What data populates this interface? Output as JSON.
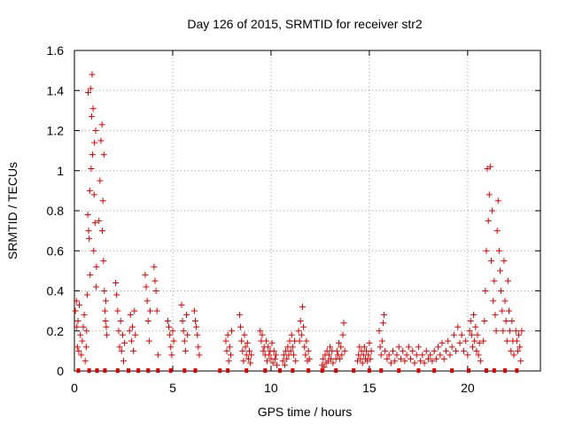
{
  "chart_data": {
    "type": "scatter",
    "title": "Day 126 of 2015, SRMTID for receiver str2",
    "xlabel": "GPS time / hours",
    "ylabel": "SRMTID / TECUs",
    "xlim": [
      0,
      23.7
    ],
    "ylim": [
      0,
      1.6
    ],
    "xticks": [
      0,
      5,
      10,
      15,
      20
    ],
    "xtick_labels": [
      "0",
      "5",
      "10",
      "15",
      "20"
    ],
    "yticks": [
      0,
      0.2,
      0.4,
      0.6,
      0.8,
      1.0,
      1.2,
      1.4,
      1.6
    ],
    "ytick_labels": [
      "0",
      "0.2",
      "0.4",
      "0.6",
      "0.8",
      "1",
      "1.2",
      "1.4",
      "1.6"
    ],
    "grid": true,
    "marker": "plus",
    "color": "#e00000",
    "series": [
      {
        "name": "SRMTID",
        "points": [
          [
            0.05,
            0.3
          ],
          [
            0.1,
            0.35
          ],
          [
            0.12,
            0.22
          ],
          [
            0.15,
            0.12
          ],
          [
            0.18,
            0.25
          ],
          [
            0.22,
            0.1
          ],
          [
            0.25,
            0.33
          ],
          [
            0.3,
            0.18
          ],
          [
            0.35,
            0.08
          ],
          [
            0.4,
            0.15
          ],
          [
            0.45,
            0.22
          ],
          [
            0.5,
            0.28
          ],
          [
            0.55,
            0.05
          ],
          [
            0.6,
            0.12
          ],
          [
            0.62,
            0.2
          ],
          [
            0.65,
            0.38
          ],
          [
            0.68,
            0.78
          ],
          [
            0.7,
            1.39
          ],
          [
            0.72,
            0.7
          ],
          [
            0.75,
            0.66
          ],
          [
            0.78,
            0.9
          ],
          [
            0.8,
            0.48
          ],
          [
            0.82,
            1.41
          ],
          [
            0.85,
            1.01
          ],
          [
            0.88,
            1.27
          ],
          [
            0.9,
            1.48
          ],
          [
            0.92,
            1.08
          ],
          [
            0.95,
            1.31
          ],
          [
            0.98,
            0.6
          ],
          [
            1.0,
            0.88
          ],
          [
            1.02,
            1.14
          ],
          [
            1.05,
            0.74
          ],
          [
            1.08,
            1.2
          ],
          [
            1.1,
            0.42
          ],
          [
            1.12,
            0.52
          ],
          [
            1.25,
            0.75
          ],
          [
            1.3,
            0.95
          ],
          [
            1.35,
            1.15
          ],
          [
            1.4,
            1.23
          ],
          [
            1.42,
            0.7
          ],
          [
            1.45,
            0.85
          ],
          [
            1.48,
            0.55
          ],
          [
            1.5,
            1.08
          ],
          [
            1.52,
            0.4
          ],
          [
            1.55,
            0.3
          ],
          [
            1.58,
            0.25
          ],
          [
            1.6,
            0.35
          ],
          [
            1.62,
            0.22
          ],
          [
            1.65,
            0.18
          ],
          [
            2.1,
            0.44
          ],
          [
            2.15,
            0.38
          ],
          [
            2.2,
            0.3
          ],
          [
            2.25,
            0.2
          ],
          [
            2.3,
            0.12
          ],
          [
            2.35,
            0.25
          ],
          [
            2.4,
            0.1
          ],
          [
            2.45,
            0.18
          ],
          [
            2.5,
            0.05
          ],
          [
            2.55,
            0.14
          ],
          [
            2.8,
            0.2
          ],
          [
            2.85,
            0.28
          ],
          [
            2.9,
            0.15
          ],
          [
            2.95,
            0.22
          ],
          [
            3.0,
            0.1
          ],
          [
            3.05,
            0.3
          ],
          [
            3.1,
            0.18
          ],
          [
            3.6,
            0.48
          ],
          [
            3.65,
            0.42
          ],
          [
            3.7,
            0.35
          ],
          [
            3.75,
            0.25
          ],
          [
            3.8,
            0.15
          ],
          [
            3.85,
            0.3
          ],
          [
            4.05,
            0.52
          ],
          [
            4.1,
            0.45
          ],
          [
            4.15,
            0.4
          ],
          [
            4.2,
            0.3
          ],
          [
            4.25,
            0.08
          ],
          [
            4.75,
            0.25
          ],
          [
            4.8,
            0.22
          ],
          [
            4.85,
            0.18
          ],
          [
            4.9,
            0.12
          ],
          [
            4.95,
            0.08
          ],
          [
            5.0,
            0.2
          ],
          [
            5.05,
            0.15
          ],
          [
            5.45,
            0.33
          ],
          [
            5.5,
            0.25
          ],
          [
            5.55,
            0.2
          ],
          [
            5.6,
            0.15
          ],
          [
            5.65,
            0.1
          ],
          [
            5.7,
            0.28
          ],
          [
            5.75,
            0.18
          ],
          [
            6.1,
            0.3
          ],
          [
            6.15,
            0.25
          ],
          [
            6.2,
            0.22
          ],
          [
            6.25,
            0.18
          ],
          [
            6.3,
            0.12
          ],
          [
            6.35,
            0.08
          ],
          [
            7.7,
            0.15
          ],
          [
            7.75,
            0.1
          ],
          [
            7.8,
            0.18
          ],
          [
            7.85,
            0.05
          ],
          [
            7.9,
            0.12
          ],
          [
            7.95,
            0.08
          ],
          [
            8.0,
            0.2
          ],
          [
            8.4,
            0.28
          ],
          [
            8.45,
            0.22
          ],
          [
            8.5,
            0.15
          ],
          [
            8.55,
            0.1
          ],
          [
            8.6,
            0.05
          ],
          [
            8.65,
            0.18
          ],
          [
            8.7,
            0.12
          ],
          [
            8.75,
            0.08
          ],
          [
            8.8,
            0.14
          ],
          [
            8.85,
            0.06
          ],
          [
            8.9,
            0.1
          ],
          [
            8.95,
            0.04
          ],
          [
            9.0,
            0.08
          ],
          [
            9.45,
            0.2
          ],
          [
            9.5,
            0.15
          ],
          [
            9.55,
            0.18
          ],
          [
            9.6,
            0.1
          ],
          [
            9.65,
            0.12
          ],
          [
            9.7,
            0.08
          ],
          [
            9.75,
            0.15
          ],
          [
            9.8,
            0.05
          ],
          [
            9.85,
            0.12
          ],
          [
            9.9,
            0.08
          ],
          [
            9.95,
            0.1
          ],
          [
            10.0,
            0.06
          ],
          [
            10.05,
            0.14
          ],
          [
            10.1,
            0.04
          ],
          [
            10.15,
            0.1
          ],
          [
            10.2,
            0.06
          ],
          [
            10.25,
            0.08
          ],
          [
            10.3,
            0.03
          ],
          [
            10.6,
            0.05
          ],
          [
            10.65,
            0.08
          ],
          [
            10.7,
            0.03
          ],
          [
            10.75,
            0.1
          ],
          [
            10.8,
            0.06
          ],
          [
            10.85,
            0.12
          ],
          [
            10.9,
            0.08
          ],
          [
            10.95,
            0.15
          ],
          [
            11.0,
            0.1
          ],
          [
            11.05,
            0.18
          ],
          [
            11.1,
            0.12
          ],
          [
            11.15,
            0.08
          ],
          [
            11.2,
            0.15
          ],
          [
            11.25,
            0.05
          ],
          [
            11.4,
            0.2
          ],
          [
            11.45,
            0.15
          ],
          [
            11.5,
            0.25
          ],
          [
            11.55,
            0.18
          ],
          [
            11.6,
            0.32
          ],
          [
            11.65,
            0.22
          ],
          [
            11.7,
            0.12
          ],
          [
            11.75,
            0.08
          ],
          [
            11.8,
            0.15
          ],
          [
            11.85,
            0.05
          ],
          [
            11.9,
            0.1
          ],
          [
            11.95,
            0.06
          ],
          [
            12.6,
            0.03
          ],
          [
            12.65,
            0.06
          ],
          [
            12.7,
            0.02
          ],
          [
            12.75,
            0.08
          ],
          [
            12.8,
            0.04
          ],
          [
            12.85,
            0.1
          ],
          [
            12.9,
            0.05
          ],
          [
            12.95,
            0.08
          ],
          [
            13.0,
            0.12
          ],
          [
            13.05,
            0.06
          ],
          [
            13.1,
            0.1
          ],
          [
            13.15,
            0.04
          ],
          [
            13.3,
            0.06
          ],
          [
            13.35,
            0.1
          ],
          [
            13.4,
            0.08
          ],
          [
            13.45,
            0.14
          ],
          [
            13.5,
            0.06
          ],
          [
            13.55,
            0.12
          ],
          [
            13.6,
            0.08
          ],
          [
            13.65,
            0.18
          ],
          [
            13.7,
            0.24
          ],
          [
            13.75,
            0.1
          ],
          [
            14.4,
            0.05
          ],
          [
            14.45,
            0.08
          ],
          [
            14.5,
            0.12
          ],
          [
            14.55,
            0.06
          ],
          [
            14.6,
            0.1
          ],
          [
            14.65,
            0.04
          ],
          [
            14.7,
            0.08
          ],
          [
            14.75,
            0.12
          ],
          [
            14.8,
            0.06
          ],
          [
            14.85,
            0.1
          ],
          [
            14.9,
            0.05
          ],
          [
            14.95,
            0.08
          ],
          [
            15.0,
            0.14
          ],
          [
            15.05,
            0.06
          ],
          [
            15.1,
            0.1
          ],
          [
            15.5,
            0.2
          ],
          [
            15.55,
            0.12
          ],
          [
            15.6,
            0.08
          ],
          [
            15.65,
            0.15
          ],
          [
            15.7,
            0.24
          ],
          [
            15.75,
            0.28
          ],
          [
            15.8,
            0.1
          ],
          [
            15.9,
            0.06
          ],
          [
            16.0,
            0.08
          ],
          [
            16.1,
            0.04
          ],
          [
            16.2,
            0.1
          ],
          [
            16.3,
            0.05
          ],
          [
            16.4,
            0.08
          ],
          [
            16.5,
            0.12
          ],
          [
            16.6,
            0.06
          ],
          [
            16.7,
            0.1
          ],
          [
            16.8,
            0.05
          ],
          [
            16.9,
            0.08
          ],
          [
            17.0,
            0.12
          ],
          [
            17.1,
            0.06
          ],
          [
            17.2,
            0.1
          ],
          [
            17.3,
            0.04
          ],
          [
            17.4,
            0.08
          ],
          [
            17.5,
            0.12
          ],
          [
            17.6,
            0.05
          ],
          [
            17.7,
            0.08
          ],
          [
            17.8,
            0.04
          ],
          [
            17.9,
            0.1
          ],
          [
            18.0,
            0.06
          ],
          [
            18.1,
            0.08
          ],
          [
            18.2,
            0.05
          ],
          [
            18.3,
            0.1
          ],
          [
            18.4,
            0.06
          ],
          [
            18.5,
            0.12
          ],
          [
            18.6,
            0.08
          ],
          [
            18.7,
            0.14
          ],
          [
            18.8,
            0.06
          ],
          [
            18.9,
            0.1
          ],
          [
            19.0,
            0.15
          ],
          [
            19.1,
            0.08
          ],
          [
            19.2,
            0.12
          ],
          [
            19.3,
            0.18
          ],
          [
            19.4,
            0.1
          ],
          [
            19.5,
            0.22
          ],
          [
            19.6,
            0.14
          ],
          [
            19.7,
            0.18
          ],
          [
            19.8,
            0.1
          ],
          [
            19.9,
            0.15
          ],
          [
            20.0,
            0.08
          ],
          [
            20.1,
            0.2
          ],
          [
            20.15,
            0.25
          ],
          [
            20.2,
            0.18
          ],
          [
            20.25,
            0.12
          ],
          [
            20.3,
            0.28
          ],
          [
            20.35,
            0.15
          ],
          [
            20.4,
            0.22
          ],
          [
            20.45,
            0.1
          ],
          [
            20.5,
            0.18
          ],
          [
            20.55,
            0.08
          ],
          [
            20.6,
            0.14
          ],
          [
            20.65,
            0.05
          ],
          [
            20.8,
            0.15
          ],
          [
            20.85,
            0.25
          ],
          [
            20.9,
            0.4
          ],
          [
            20.95,
            0.6
          ],
          [
            21.0,
            1.01
          ],
          [
            21.05,
            0.75
          ],
          [
            21.1,
            0.88
          ],
          [
            21.15,
            1.02
          ],
          [
            21.2,
            0.55
          ],
          [
            21.25,
            0.8
          ],
          [
            21.3,
            0.35
          ],
          [
            21.35,
            0.45
          ],
          [
            21.4,
            0.28
          ],
          [
            21.45,
            0.2
          ],
          [
            21.5,
            0.7
          ],
          [
            21.55,
            0.85
          ],
          [
            21.6,
            0.6
          ],
          [
            21.65,
            0.5
          ],
          [
            21.7,
            0.4
          ],
          [
            21.75,
            0.3
          ],
          [
            21.8,
            0.2
          ],
          [
            21.85,
            0.55
          ],
          [
            21.9,
            0.35
          ],
          [
            21.95,
            0.25
          ],
          [
            22.0,
            0.15
          ],
          [
            22.05,
            0.45
          ],
          [
            22.1,
            0.3
          ],
          [
            22.15,
            0.2
          ],
          [
            22.2,
            0.1
          ],
          [
            22.25,
            0.25
          ],
          [
            22.3,
            0.15
          ],
          [
            22.35,
            0.08
          ],
          [
            22.45,
            0.2
          ],
          [
            22.5,
            0.15
          ],
          [
            22.55,
            0.1
          ],
          [
            22.6,
            0.18
          ],
          [
            22.65,
            0.12
          ],
          [
            22.7,
            0.05
          ],
          [
            22.75,
            0.2
          ]
        ]
      }
    ],
    "zero_markers_x": [
      0.2,
      0.75,
      1.15,
      1.55,
      2.2,
      2.75,
      3.25,
      3.75,
      4.25,
      4.9,
      5.6,
      6.15,
      7.4,
      7.8,
      8.75,
      9.7,
      10.45,
      11.1,
      11.9,
      12.6,
      13.3,
      14.2,
      15.0,
      15.6,
      16.5,
      17.5,
      18.3,
      19.2,
      20.05,
      20.95,
      21.35,
      21.9,
      22.5
    ]
  }
}
